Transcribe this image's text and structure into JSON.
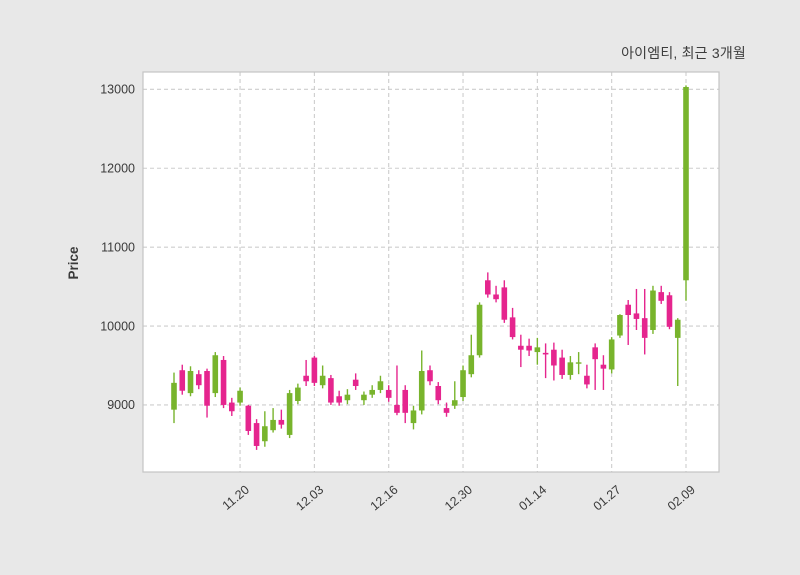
{
  "chart_data": {
    "type": "candlestick",
    "title": "아이엠티, 최근 3개월",
    "ylabel": "Price",
    "legend": null,
    "grid": "dashed",
    "y_ticks": [
      9000,
      10000,
      11000,
      12000,
      13000
    ],
    "ylim": [
      8150,
      13220
    ],
    "x_tick_labels": [
      "11.20",
      "12.03",
      "12.16",
      "12.30",
      "01.14",
      "01.27",
      "02.09"
    ],
    "x_tick_indices": [
      8,
      17,
      26,
      35,
      44,
      53,
      62
    ],
    "candle_format": [
      "open",
      "high",
      "low",
      "close"
    ],
    "candles": [
      [
        8940,
        9410,
        8770,
        9280
      ],
      [
        9440,
        9510,
        9130,
        9180
      ],
      [
        9150,
        9490,
        9110,
        9430
      ],
      [
        9390,
        9440,
        9200,
        9250
      ],
      [
        9430,
        9460,
        8840,
        8990
      ],
      [
        9150,
        9670,
        9100,
        9630
      ],
      [
        9570,
        9620,
        8960,
        9000
      ],
      [
        9030,
        9090,
        8860,
        8920
      ],
      [
        9030,
        9220,
        8990,
        9180
      ],
      [
        8990,
        9000,
        8620,
        8670
      ],
      [
        8770,
        8820,
        8430,
        8480
      ],
      [
        8540,
        8920,
        8470,
        8730
      ],
      [
        8680,
        8960,
        8650,
        8810
      ],
      [
        8810,
        8940,
        8700,
        8750
      ],
      [
        8620,
        9190,
        8580,
        9150
      ],
      [
        9050,
        9270,
        9010,
        9220
      ],
      [
        9370,
        9570,
        9240,
        9300
      ],
      [
        9600,
        9620,
        9240,
        9280
      ],
      [
        9250,
        9500,
        9210,
        9370
      ],
      [
        9340,
        9380,
        9000,
        9030
      ],
      [
        9110,
        9180,
        8990,
        9030
      ],
      [
        9060,
        9200,
        9010,
        9130
      ],
      [
        9320,
        9400,
        9190,
        9240
      ],
      [
        9060,
        9170,
        9000,
        9130
      ],
      [
        9130,
        9250,
        9090,
        9190
      ],
      [
        9190,
        9370,
        9150,
        9300
      ],
      [
        9190,
        9250,
        9040,
        9090
      ],
      [
        9000,
        9500,
        8870,
        8900
      ],
      [
        9190,
        9250,
        8770,
        8900
      ],
      [
        8770,
        8990,
        8690,
        8930
      ],
      [
        8930,
        9690,
        8880,
        9430
      ],
      [
        9440,
        9500,
        9250,
        9300
      ],
      [
        9240,
        9290,
        9010,
        9060
      ],
      [
        8960,
        9030,
        8850,
        8900
      ],
      [
        8990,
        9300,
        8950,
        9060
      ],
      [
        9100,
        9500,
        9050,
        9440
      ],
      [
        9390,
        9890,
        9350,
        9630
      ],
      [
        9630,
        10300,
        9600,
        10270
      ],
      [
        10580,
        10680,
        10360,
        10400
      ],
      [
        10400,
        10510,
        10300,
        10340
      ],
      [
        10490,
        10580,
        10040,
        10080
      ],
      [
        10110,
        10230,
        9830,
        9860
      ],
      [
        9750,
        9890,
        9480,
        9700
      ],
      [
        9750,
        9840,
        9620,
        9690
      ],
      [
        9670,
        9850,
        9510,
        9730
      ],
      [
        9660,
        9780,
        9340,
        9640
      ],
      [
        9700,
        9790,
        9310,
        9500
      ],
      [
        9600,
        9700,
        9330,
        9380
      ],
      [
        9380,
        9620,
        9320,
        9540
      ],
      [
        9530,
        9670,
        9390,
        9540
      ],
      [
        9370,
        9510,
        9210,
        9260
      ],
      [
        9730,
        9780,
        9190,
        9580
      ],
      [
        9510,
        9630,
        9190,
        9460
      ],
      [
        9450,
        9860,
        9400,
        9830
      ],
      [
        9880,
        10150,
        9850,
        10140
      ],
      [
        10270,
        10330,
        9760,
        10140
      ],
      [
        10160,
        10470,
        9950,
        10090
      ],
      [
        10100,
        10470,
        9640,
        9850
      ],
      [
        9950,
        10510,
        9900,
        10450
      ],
      [
        10430,
        10510,
        10280,
        10320
      ],
      [
        10390,
        10430,
        9960,
        9990
      ],
      [
        9850,
        10100,
        9240,
        10080
      ],
      [
        10580,
        13050,
        10320,
        13030
      ]
    ],
    "colors": {
      "up": "#78b42c",
      "down": "#e5258e",
      "figure_bg": "#e8e8e8",
      "plot_bg": "#ffffff",
      "grid": "#cdcdcd",
      "border": "#c4c4c4",
      "text": "#3a3a3a"
    }
  }
}
